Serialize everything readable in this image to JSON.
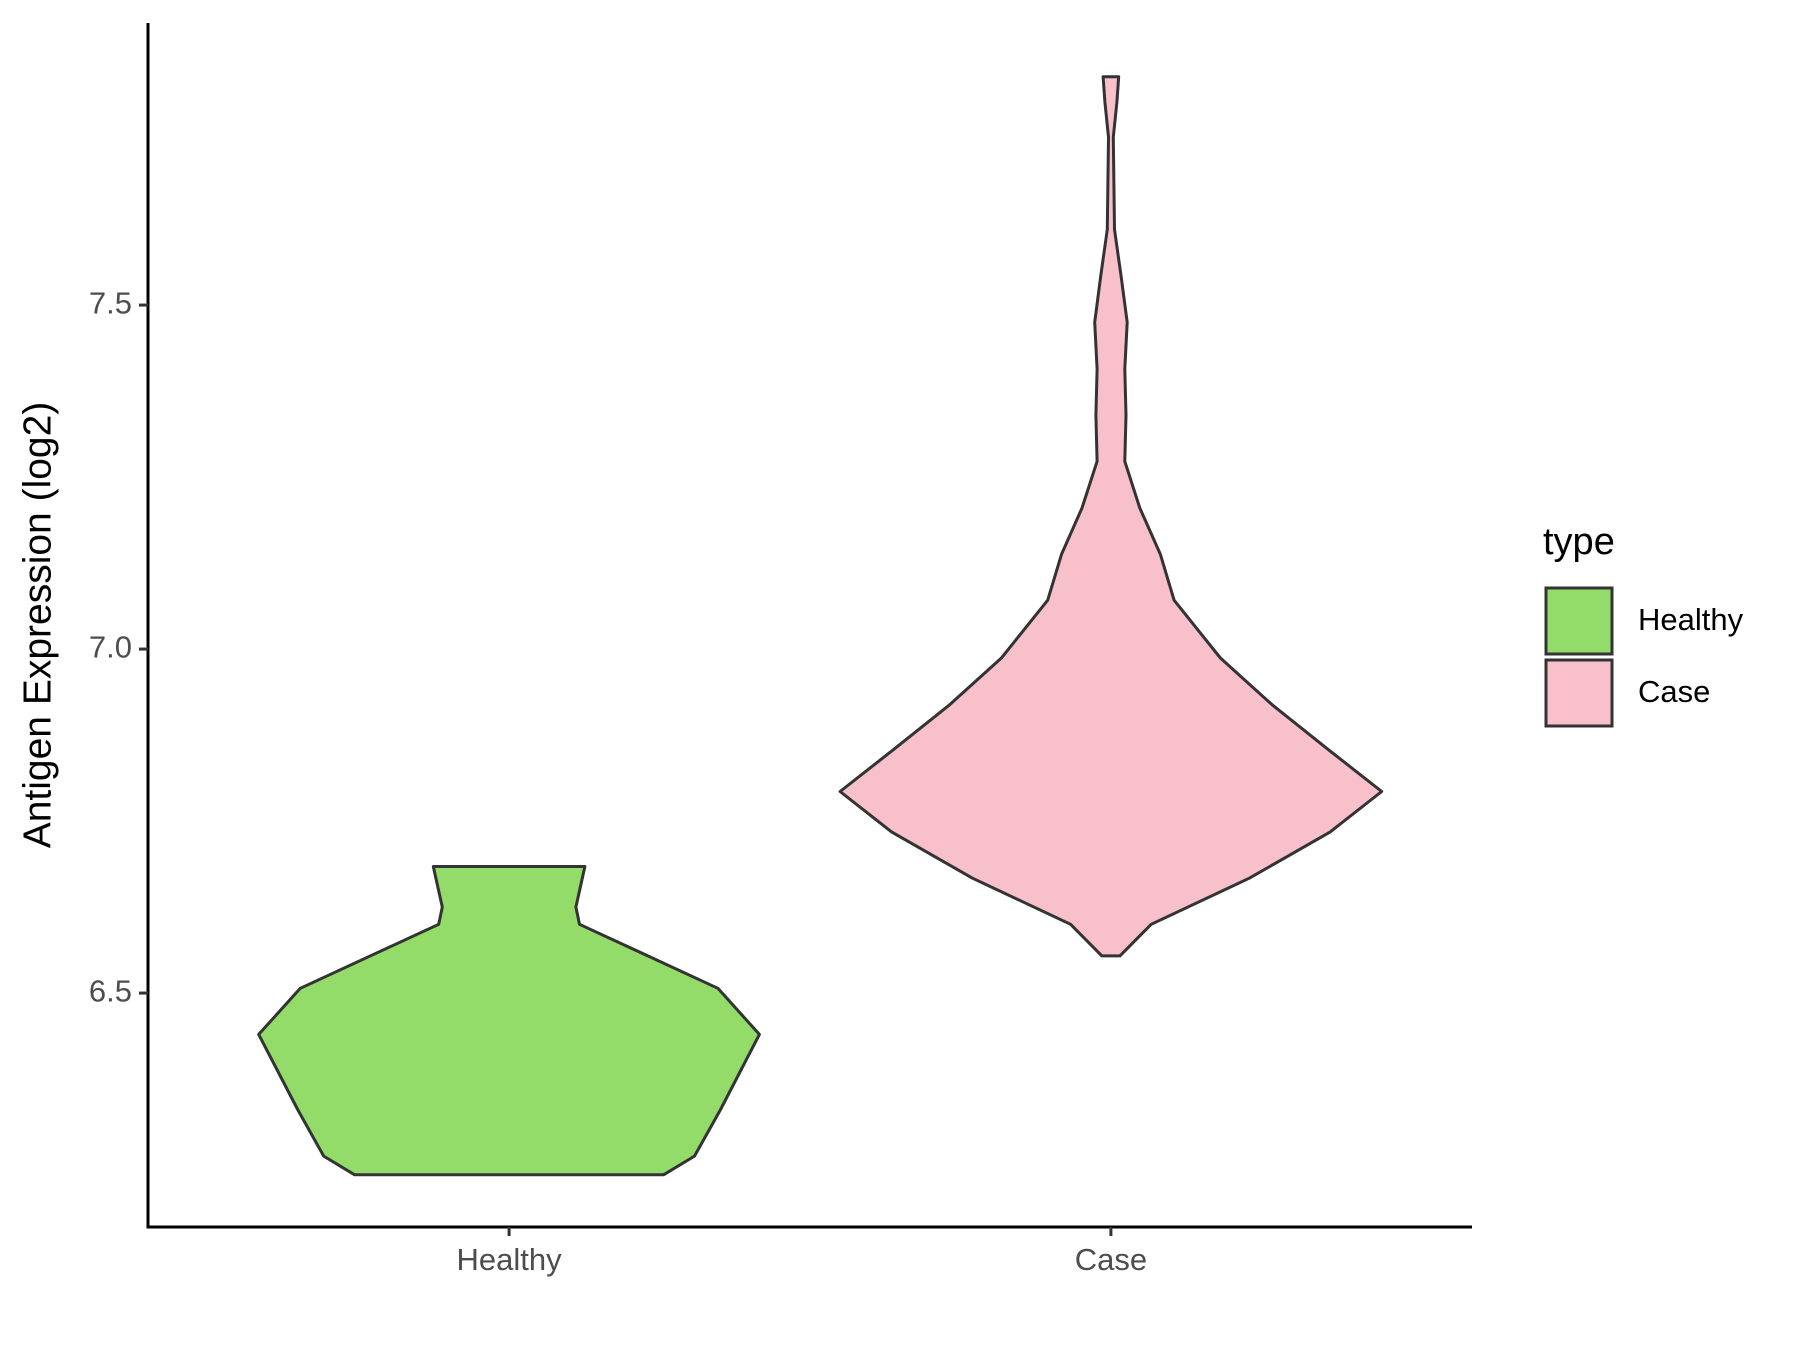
{
  "chart_data": {
    "type": "violin",
    "y_label": "Antigen Expression (log2)",
    "legend_title": "type",
    "legend_position": "right",
    "ylim": [
      6.16,
      7.91
    ],
    "yticks": [
      6.5,
      {
        "value": 7,
        "label": "7.0"
      },
      7.5
    ],
    "categories": [
      "Healthy",
      "Case"
    ],
    "series": [
      {
        "name": "Healthy",
        "color": "#94dc6a",
        "y": [
          6.236,
          6.263,
          6.33,
          6.44,
          6.507,
          6.6,
          6.625,
          6.684
        ],
        "widths": [
          0.257,
          0.308,
          0.351,
          0.416,
          0.347,
          0.117,
          0.111,
          0.126
        ]
      },
      {
        "name": "Case",
        "color": "#f7c0cb",
        "y": [
          6.554,
          6.6,
          6.667,
          6.734,
          6.793,
          6.852,
          6.919,
          6.987,
          7.071,
          7.138,
          7.205,
          7.273,
          7.34,
          7.407,
          7.475,
          7.542,
          7.61,
          7.744,
          7.795,
          7.832
        ],
        "widths": [
          0.015,
          0.067,
          0.23,
          0.364,
          0.45,
          0.364,
          0.268,
          0.182,
          0.105,
          0.082,
          0.048,
          0.023,
          0.025,
          0.023,
          0.027,
          0.017,
          0.006,
          0.004,
          0.01,
          0.013
        ]
      }
    ]
  }
}
